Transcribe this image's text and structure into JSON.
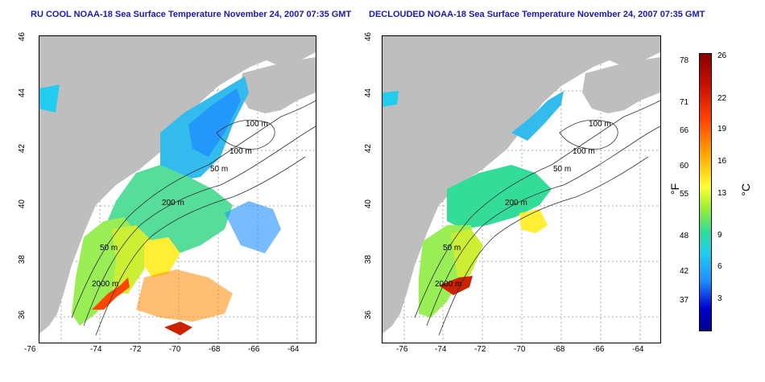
{
  "left_panel": {
    "title": "RU COOL NOAA-18 Sea Surface Temperature November 24, 2007 07:35 GMT",
    "contour_labels": [
      "100 m",
      "100 m",
      "50 m",
      "200 m",
      "50 m",
      "2000 m"
    ]
  },
  "right_panel": {
    "title": "DECLOUDED NOAA-18 Sea Surface Temperature November 24, 2007 07:35 GMT",
    "contour_labels": [
      "100 m",
      "100 m",
      "50 m",
      "200 m",
      "50 m",
      "2000 m"
    ]
  },
  "axes": {
    "x_ticks": [
      "-76",
      "-74",
      "-72",
      "-70",
      "-68",
      "-66",
      "-64"
    ],
    "y_ticks": [
      "46",
      "44",
      "42",
      "40",
      "38",
      "36"
    ]
  },
  "colorbar": {
    "fahrenheit_label": "°F",
    "celsius_label": "°C",
    "fahrenheit_ticks": [
      "78",
      "71",
      "66",
      "60",
      "55",
      "48",
      "42",
      "37"
    ],
    "celsius_ticks": [
      "26",
      "22",
      "19",
      "16",
      "13",
      "9",
      "6",
      "3"
    ],
    "colors": [
      "#8b0000",
      "#ff4500",
      "#ffa500",
      "#ffff33",
      "#33dd99",
      "#22ccee",
      "#1e90ff",
      "#00008b"
    ]
  },
  "colors": {
    "land": "#bebebe",
    "title": "#1818b8",
    "grid": "#aaaaaa"
  }
}
